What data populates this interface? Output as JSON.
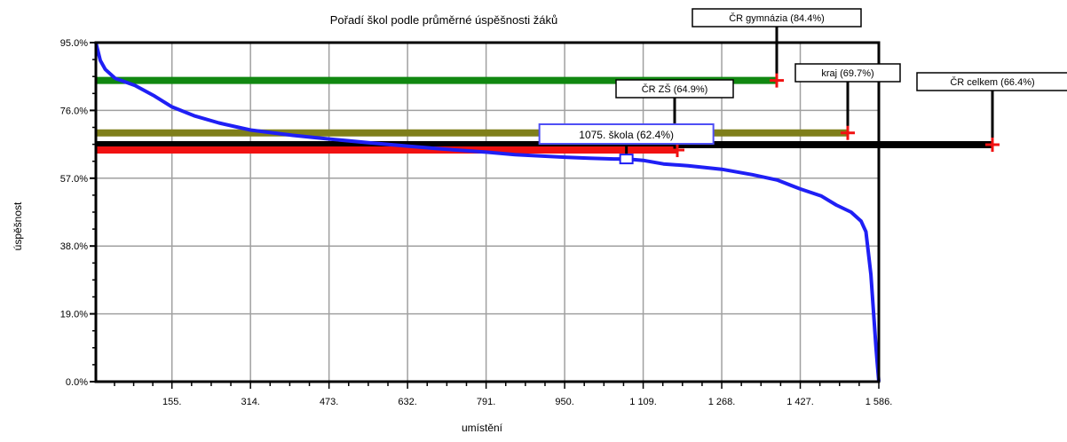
{
  "chart_data": {
    "type": "line",
    "title": "Pořadí škol podle průměrné úspěšnosti žáků",
    "xlabel": "umístění",
    "ylabel": "úspěšnost",
    "xlim": [
      1,
      1586
    ],
    "ylim": [
      0,
      95
    ],
    "x_ticks": [
      155,
      314,
      473,
      632,
      791,
      950,
      1109,
      1268,
      1427,
      1586
    ],
    "x_tick_labels": [
      "155.",
      "314.",
      "473.",
      "632.",
      "791.",
      "950.",
      "1 109.",
      "1 268.",
      "1 427.",
      "1 586."
    ],
    "y_ticks": [
      0,
      19,
      38,
      57,
      76,
      95
    ],
    "y_tick_labels": [
      "0.0%",
      "19.0%",
      "38.0%",
      "57.0%",
      "76.0%",
      "95.0%"
    ],
    "grid": true,
    "series": [
      {
        "color": "#1f1ff5",
        "x": [
          1,
          10,
          20,
          40,
          80,
          120,
          155,
          200,
          250,
          314,
          400,
          473,
          550,
          632,
          700,
          791,
          850,
          950,
          1000,
          1050,
          1075,
          1109,
          1150,
          1200,
          1268,
          1330,
          1380,
          1427,
          1470,
          1500,
          1530,
          1550,
          1560,
          1570,
          1575,
          1580,
          1583,
          1586
        ],
        "y": [
          95,
          90,
          87.5,
          85,
          83,
          80,
          77,
          74.5,
          72.5,
          70.5,
          69,
          68,
          67,
          66,
          65.2,
          64.3,
          63.6,
          62.9,
          62.6,
          62.4,
          62.4,
          62,
          61,
          60.5,
          59.5,
          58,
          56.5,
          54,
          52,
          49.5,
          47.5,
          45,
          42,
          30,
          20,
          10,
          5,
          0
        ]
      }
    ],
    "reference_lines": [
      {
        "label": "ČR gymnázia (84.4%)",
        "value": 84.4,
        "color": "#118811"
      },
      {
        "label": "ČR ZŠ (64.9%)",
        "value": 64.9,
        "color": "#f11111"
      },
      {
        "label": "kraj (69.7%)",
        "value": 69.7,
        "color": "#7f7f1a"
      },
      {
        "label": "ČR celkem (66.4%)",
        "value": 66.4,
        "color": "#000000"
      }
    ],
    "highlight": {
      "label": "1075. škola (62.4%)",
      "x": 1075,
      "y": 62.4
    }
  }
}
